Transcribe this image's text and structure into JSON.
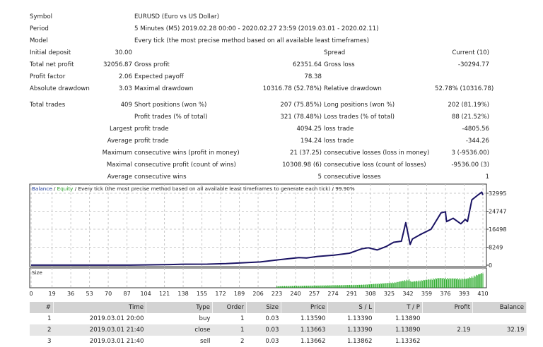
{
  "stats": {
    "rows": [
      [
        "Symbol",
        "",
        "EURUSD (Euro vs US Dollar)",
        "",
        "",
        ""
      ],
      [
        "Period",
        "",
        "5 Minutes (M5) 2019.02.28 00:00 - 2020.02.27 23:59 (2019.03.01 - 2020.02.11)",
        "",
        "",
        ""
      ],
      [
        "Model",
        "",
        "Every tick (the most precise method based on all available least timeframes)",
        "",
        "",
        ""
      ],
      [
        "Initial deposit",
        "30.00",
        "",
        "",
        "Spread",
        "Current (10)"
      ],
      [
        "Total net profit",
        "32056.87",
        "Gross profit",
        "62351.64",
        "Gross loss",
        "-30294.77"
      ],
      [
        "Profit factor",
        "2.06",
        "Expected payoff",
        "78.38",
        "",
        ""
      ],
      [
        "Absolute drawdown",
        "3.03",
        "Maximal drawdown",
        "10316.78 (52.78%)",
        "Relative drawdown",
        "52.78% (10316.78)"
      ],
      [
        "Total trades",
        "409",
        "Short positions (won %)",
        "207 (75.85%)",
        "Long positions (won %)",
        "202 (81.19%)"
      ],
      [
        "",
        "",
        "Profit trades (% of total)",
        "321 (78.48%)",
        "Loss trades (% of total)",
        "88 (21.52%)"
      ],
      [
        "",
        "Largest",
        "profit trade",
        "4094.25",
        "loss trade",
        "-4805.56"
      ],
      [
        "",
        "Average",
        "profit trade",
        "194.24",
        "loss trade",
        "-344.26"
      ],
      [
        "",
        "Maximum",
        "consecutive wins (profit in money)",
        "21 (37.25)",
        "consecutive losses (loss in money)",
        "3 (-9536.00)"
      ],
      [
        "",
        "Maximal",
        "consecutive profit (count of wins)",
        "10308.98 (6)",
        "consecutive loss (count of losses)",
        "-9536.00 (3)"
      ],
      [
        "",
        "Average",
        "consecutive wins",
        "5",
        "consecutive losses",
        "1"
      ]
    ]
  },
  "chart_data": {
    "type": "line",
    "title_parts": [
      "Balance",
      " / ",
      "Equity",
      " / Every tick (the most precise method based on all available least timeframes to generate each tick) / 99.90%"
    ],
    "ylim": [
      0,
      32995
    ],
    "y_ticks": [
      "32995",
      "24747",
      "16498",
      "8249",
      "0"
    ],
    "y_tick_values": [
      32995,
      24747,
      16498,
      8249,
      0
    ],
    "x_ticks": [
      "0",
      "19",
      "36",
      "53",
      "70",
      "87",
      "104",
      "121",
      "138",
      "155",
      "172",
      "189",
      "206",
      "223",
      "240",
      "257",
      "274",
      "291",
      "308",
      "325",
      "342",
      "359",
      "376",
      "393",
      "410"
    ],
    "xlim": [
      0,
      410
    ],
    "size_label": "Size",
    "balance": [
      [
        0,
        30
      ],
      [
        90,
        40
      ],
      [
        126,
        300
      ],
      [
        140,
        450
      ],
      [
        160,
        500
      ],
      [
        177,
        700
      ],
      [
        208,
        1500
      ],
      [
        225,
        2500
      ],
      [
        243,
        3500
      ],
      [
        250,
        3300
      ],
      [
        260,
        4000
      ],
      [
        275,
        4600
      ],
      [
        289,
        5500
      ],
      [
        300,
        7500
      ],
      [
        306,
        8000
      ],
      [
        314,
        7000
      ],
      [
        322,
        8500
      ],
      [
        329,
        10500
      ],
      [
        336,
        11000
      ],
      [
        340,
        19500
      ],
      [
        344,
        9500
      ],
      [
        346,
        12000
      ],
      [
        353,
        14000
      ],
      [
        363,
        16500
      ],
      [
        372,
        24000
      ],
      [
        376,
        24500
      ],
      [
        377,
        20000
      ],
      [
        383,
        21500
      ],
      [
        390,
        19000
      ],
      [
        394,
        21000
      ],
      [
        396,
        20000
      ],
      [
        400,
        30000
      ],
      [
        405,
        32000
      ],
      [
        409,
        33500
      ],
      [
        410,
        32200
      ]
    ],
    "size": [
      [
        0,
        0
      ],
      [
        222,
        0
      ],
      [
        223,
        0.1
      ],
      [
        300,
        0.2
      ],
      [
        330,
        0.35
      ],
      [
        343,
        0.55
      ],
      [
        345,
        0.4
      ],
      [
        370,
        0.65
      ],
      [
        395,
        0.6
      ],
      [
        410,
        1.0
      ]
    ],
    "colors": {
      "balance": "#1b1464",
      "equity": "#2ca02c",
      "size": "#22a722",
      "grid": "#c8c8c8"
    }
  },
  "table": {
    "headers": [
      "#",
      "Time",
      "Type",
      "Order",
      "Size",
      "Price",
      "S / L",
      "T / P",
      "Profit",
      "Balance"
    ],
    "rows": [
      [
        "1",
        "2019.03.01 20:00",
        "buy",
        "1",
        "0.03",
        "1.13590",
        "1.13390",
        "1.13890",
        "",
        ""
      ],
      [
        "2",
        "2019.03.01 21:40",
        "close",
        "1",
        "0.03",
        "1.13663",
        "1.13390",
        "1.13890",
        "2.19",
        "32.19"
      ],
      [
        "3",
        "2019.03.01 21:40",
        "sell",
        "2",
        "0.03",
        "1.13662",
        "1.13862",
        "1.13362",
        "",
        ""
      ]
    ]
  }
}
